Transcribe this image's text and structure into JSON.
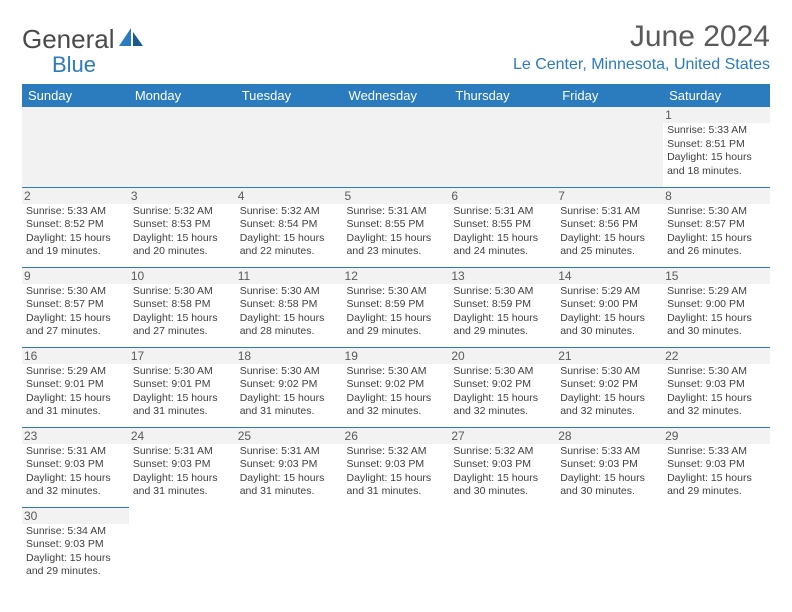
{
  "brand": {
    "part1": "General",
    "part2": "Blue"
  },
  "title": "June 2024",
  "location": "Le Center, Minnesota, United States",
  "colors": {
    "header_bg": "#2b7bbf",
    "header_text": "#ffffff",
    "accent": "#2b7bbf",
    "text": "#404040",
    "muted": "#5a5a5a",
    "shade": "#f2f2f2"
  },
  "day_headers": [
    "Sunday",
    "Monday",
    "Tuesday",
    "Wednesday",
    "Thursday",
    "Friday",
    "Saturday"
  ],
  "weeks": [
    [
      null,
      null,
      null,
      null,
      null,
      null,
      {
        "n": "1",
        "sr": "5:33 AM",
        "ss": "8:51 PM",
        "dl": "15 hours and 18 minutes."
      }
    ],
    [
      {
        "n": "2",
        "sr": "5:33 AM",
        "ss": "8:52 PM",
        "dl": "15 hours and 19 minutes."
      },
      {
        "n": "3",
        "sr": "5:32 AM",
        "ss": "8:53 PM",
        "dl": "15 hours and 20 minutes."
      },
      {
        "n": "4",
        "sr": "5:32 AM",
        "ss": "8:54 PM",
        "dl": "15 hours and 22 minutes."
      },
      {
        "n": "5",
        "sr": "5:31 AM",
        "ss": "8:55 PM",
        "dl": "15 hours and 23 minutes."
      },
      {
        "n": "6",
        "sr": "5:31 AM",
        "ss": "8:55 PM",
        "dl": "15 hours and 24 minutes."
      },
      {
        "n": "7",
        "sr": "5:31 AM",
        "ss": "8:56 PM",
        "dl": "15 hours and 25 minutes."
      },
      {
        "n": "8",
        "sr": "5:30 AM",
        "ss": "8:57 PM",
        "dl": "15 hours and 26 minutes."
      }
    ],
    [
      {
        "n": "9",
        "sr": "5:30 AM",
        "ss": "8:57 PM",
        "dl": "15 hours and 27 minutes."
      },
      {
        "n": "10",
        "sr": "5:30 AM",
        "ss": "8:58 PM",
        "dl": "15 hours and 27 minutes."
      },
      {
        "n": "11",
        "sr": "5:30 AM",
        "ss": "8:58 PM",
        "dl": "15 hours and 28 minutes."
      },
      {
        "n": "12",
        "sr": "5:30 AM",
        "ss": "8:59 PM",
        "dl": "15 hours and 29 minutes."
      },
      {
        "n": "13",
        "sr": "5:30 AM",
        "ss": "8:59 PM",
        "dl": "15 hours and 29 minutes."
      },
      {
        "n": "14",
        "sr": "5:29 AM",
        "ss": "9:00 PM",
        "dl": "15 hours and 30 minutes."
      },
      {
        "n": "15",
        "sr": "5:29 AM",
        "ss": "9:00 PM",
        "dl": "15 hours and 30 minutes."
      }
    ],
    [
      {
        "n": "16",
        "sr": "5:29 AM",
        "ss": "9:01 PM",
        "dl": "15 hours and 31 minutes."
      },
      {
        "n": "17",
        "sr": "5:30 AM",
        "ss": "9:01 PM",
        "dl": "15 hours and 31 minutes."
      },
      {
        "n": "18",
        "sr": "5:30 AM",
        "ss": "9:02 PM",
        "dl": "15 hours and 31 minutes."
      },
      {
        "n": "19",
        "sr": "5:30 AM",
        "ss": "9:02 PM",
        "dl": "15 hours and 32 minutes."
      },
      {
        "n": "20",
        "sr": "5:30 AM",
        "ss": "9:02 PM",
        "dl": "15 hours and 32 minutes."
      },
      {
        "n": "21",
        "sr": "5:30 AM",
        "ss": "9:02 PM",
        "dl": "15 hours and 32 minutes."
      },
      {
        "n": "22",
        "sr": "5:30 AM",
        "ss": "9:03 PM",
        "dl": "15 hours and 32 minutes."
      }
    ],
    [
      {
        "n": "23",
        "sr": "5:31 AM",
        "ss": "9:03 PM",
        "dl": "15 hours and 32 minutes."
      },
      {
        "n": "24",
        "sr": "5:31 AM",
        "ss": "9:03 PM",
        "dl": "15 hours and 31 minutes."
      },
      {
        "n": "25",
        "sr": "5:31 AM",
        "ss": "9:03 PM",
        "dl": "15 hours and 31 minutes."
      },
      {
        "n": "26",
        "sr": "5:32 AM",
        "ss": "9:03 PM",
        "dl": "15 hours and 31 minutes."
      },
      {
        "n": "27",
        "sr": "5:32 AM",
        "ss": "9:03 PM",
        "dl": "15 hours and 30 minutes."
      },
      {
        "n": "28",
        "sr": "5:33 AM",
        "ss": "9:03 PM",
        "dl": "15 hours and 30 minutes."
      },
      {
        "n": "29",
        "sr": "5:33 AM",
        "ss": "9:03 PM",
        "dl": "15 hours and 29 minutes."
      }
    ],
    [
      {
        "n": "30",
        "sr": "5:34 AM",
        "ss": "9:03 PM",
        "dl": "15 hours and 29 minutes."
      },
      null,
      null,
      null,
      null,
      null,
      null
    ]
  ],
  "labels": {
    "sunrise": "Sunrise:",
    "sunset": "Sunset:",
    "daylight": "Daylight:"
  }
}
